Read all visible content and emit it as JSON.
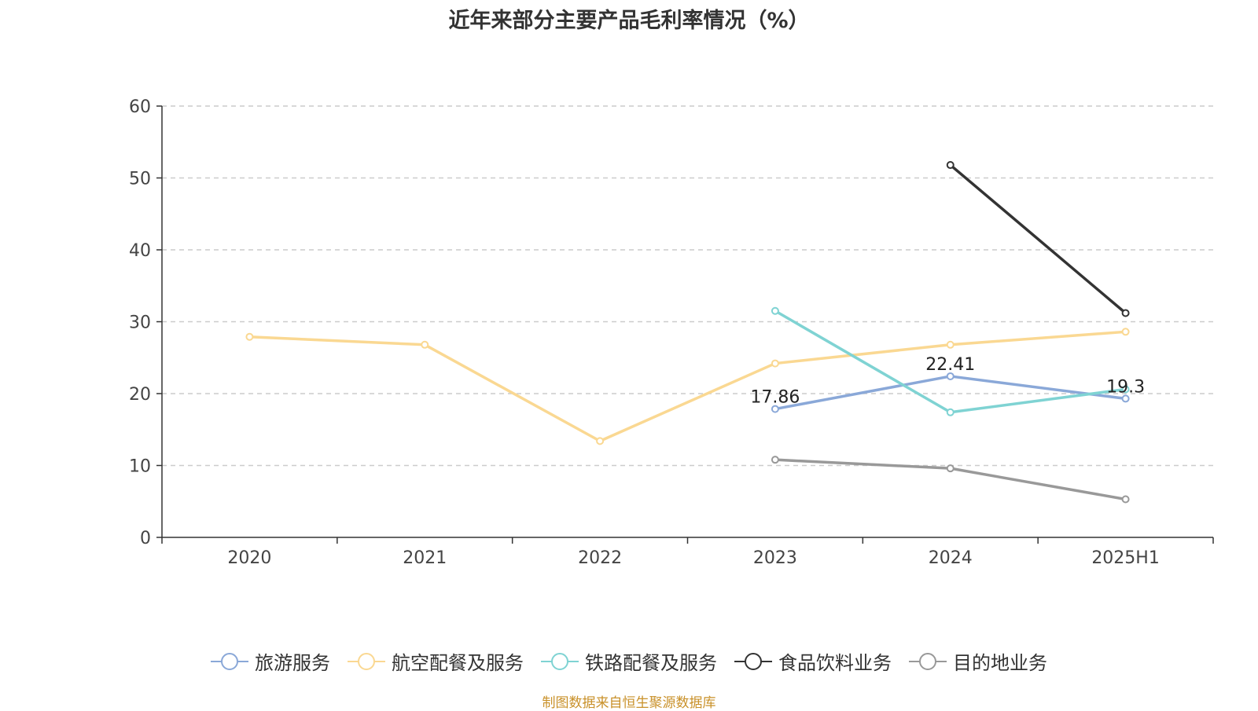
{
  "chart_data": {
    "type": "line",
    "title": "近年来部分主要产品毛利率情况（%）",
    "categories": [
      "2020",
      "2021",
      "2022",
      "2023",
      "2024",
      "2025H1"
    ],
    "ylim": [
      0,
      60
    ],
    "yticks": [
      "0",
      "10",
      "20",
      "30",
      "40",
      "50",
      "60"
    ],
    "grid": true,
    "legend_position": "bottom",
    "series": [
      {
        "name": "旅游服务",
        "color": "#8aa8d8",
        "values": [
          null,
          null,
          null,
          17.86,
          22.41,
          19.3
        ],
        "labels": [
          null,
          null,
          null,
          "17.86",
          "22.41",
          "19.3"
        ]
      },
      {
        "name": "航空配餐及服务",
        "color": "#fad892",
        "values": [
          27.9,
          26.8,
          13.4,
          24.2,
          26.8,
          28.6
        ]
      },
      {
        "name": "铁路配餐及服务",
        "color": "#7fd3d3",
        "values": [
          null,
          null,
          null,
          31.5,
          17.4,
          20.6
        ]
      },
      {
        "name": "食品饮料业务",
        "color": "#333333",
        "values": [
          null,
          null,
          null,
          null,
          51.8,
          31.2
        ]
      },
      {
        "name": "目的地业务",
        "color": "#999999",
        "values": [
          null,
          null,
          null,
          10.8,
          9.6,
          5.3
        ]
      }
    ]
  },
  "footer": {
    "source": "制图数据来自恒生聚源数据库"
  }
}
